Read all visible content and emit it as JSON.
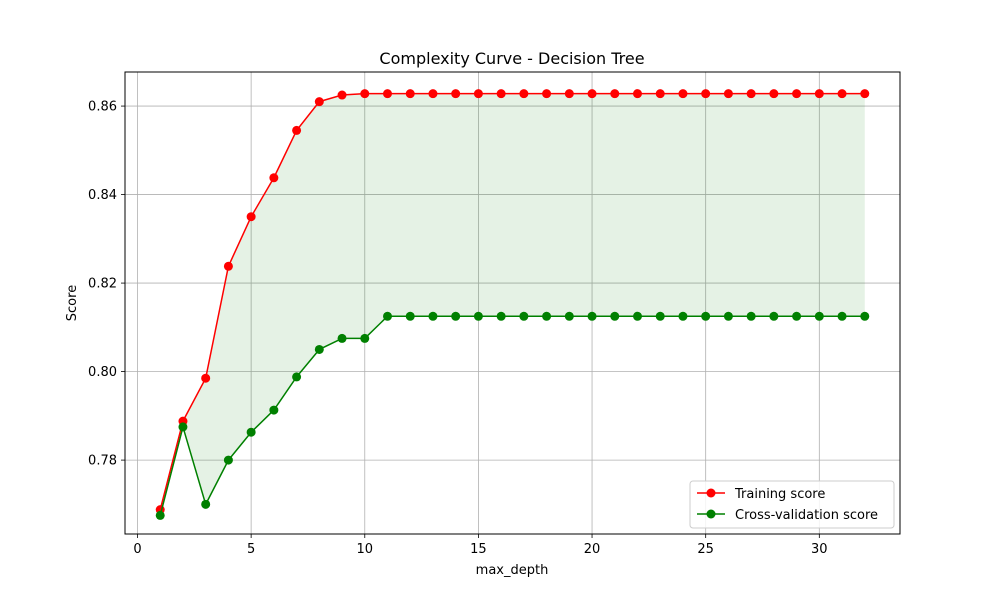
{
  "chart_data": {
    "type": "line",
    "title": "Complexity Curve - Decision Tree",
    "xlabel": "max_depth",
    "ylabel": "Score",
    "xlim": [
      -0.55,
      33.55
    ],
    "ylim": [
      0.7633,
      0.8677
    ],
    "xticks": [
      0,
      5,
      10,
      15,
      20,
      25,
      30
    ],
    "yticks": [
      0.78,
      0.8,
      0.82,
      0.84,
      0.86
    ],
    "grid": true,
    "legend_position": "lower-right",
    "fill_between": {
      "series": [
        "Training score",
        "Cross-validation score"
      ],
      "color": "#008000",
      "opacity": 0.1
    },
    "x": [
      1,
      2,
      3,
      4,
      5,
      6,
      7,
      8,
      9,
      10,
      11,
      12,
      13,
      14,
      15,
      16,
      17,
      18,
      19,
      20,
      21,
      22,
      23,
      24,
      25,
      26,
      27,
      28,
      29,
      30,
      31,
      32
    ],
    "series": [
      {
        "name": "Training score",
        "color": "#ff0000",
        "marker": "circle",
        "values": [
          0.7688,
          0.7888,
          0.7985,
          0.8238,
          0.835,
          0.8438,
          0.8545,
          0.861,
          0.8625,
          0.8628,
          0.8628,
          0.8628,
          0.8628,
          0.8628,
          0.8628,
          0.8628,
          0.8628,
          0.8628,
          0.8628,
          0.8628,
          0.8628,
          0.8628,
          0.8628,
          0.8628,
          0.8628,
          0.8628,
          0.8628,
          0.8628,
          0.8628,
          0.8628,
          0.8628,
          0.8628
        ]
      },
      {
        "name": "Cross-validation score",
        "color": "#008000",
        "marker": "circle",
        "values": [
          0.7675,
          0.7875,
          0.77,
          0.78,
          0.7863,
          0.7913,
          0.7988,
          0.805,
          0.8075,
          0.8075,
          0.8125,
          0.8125,
          0.8125,
          0.8125,
          0.8125,
          0.8125,
          0.8125,
          0.8125,
          0.8125,
          0.8125,
          0.8125,
          0.8125,
          0.8125,
          0.8125,
          0.8125,
          0.8125,
          0.8125,
          0.8125,
          0.8125,
          0.8125,
          0.8125,
          0.8125
        ]
      }
    ]
  }
}
